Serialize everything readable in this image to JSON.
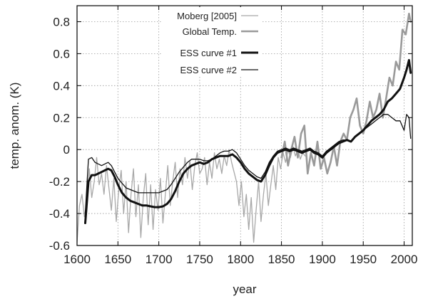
{
  "chart_data": {
    "type": "line",
    "title": "",
    "xlabel": "year",
    "ylabel": "temp. anom. (K)",
    "xlim": [
      1600,
      2010
    ],
    "ylim": [
      -0.6,
      0.9
    ],
    "grid": true,
    "legend_position": "top-center",
    "x_ticks": [
      1600,
      1650,
      1700,
      1750,
      1800,
      1850,
      1900,
      1950,
      2000
    ],
    "x_tick_labels": [
      "1600",
      "1650",
      "1700",
      "1750",
      "1800",
      "1850",
      "1900",
      "1950",
      "2000"
    ],
    "y_ticks": [
      -0.6,
      -0.4,
      -0.2,
      0,
      0.2,
      0.4,
      0.6,
      0.8
    ],
    "y_tick_labels": [
      "-0.6",
      "-0.4",
      "-0.2",
      "0",
      "0.2",
      "0.4",
      "0.6",
      "0.8"
    ],
    "series": [
      {
        "name": "Moberg [2005]",
        "color": "#a8a8a8",
        "width": 1.3,
        "x": [
          1600,
          1603,
          1606,
          1609,
          1612,
          1615,
          1618,
          1621,
          1624,
          1627,
          1630,
          1633,
          1636,
          1639,
          1642,
          1645,
          1648,
          1651,
          1654,
          1657,
          1660,
          1663,
          1666,
          1669,
          1672,
          1675,
          1678,
          1681,
          1684,
          1687,
          1690,
          1693,
          1696,
          1699,
          1702,
          1705,
          1708,
          1711,
          1714,
          1717,
          1720,
          1723,
          1726,
          1729,
          1732,
          1735,
          1738,
          1741,
          1744,
          1747,
          1750,
          1753,
          1756,
          1759,
          1762,
          1765,
          1768,
          1771,
          1774,
          1777,
          1780,
          1783,
          1786,
          1789,
          1792,
          1795,
          1798,
          1801,
          1804,
          1807,
          1810,
          1813,
          1816,
          1819,
          1822,
          1825,
          1828,
          1831,
          1834,
          1837,
          1840,
          1843,
          1846,
          1849,
          1852,
          1855,
          1858,
          1861,
          1864,
          1867,
          1870,
          1873,
          1876,
          1879
        ],
        "y": [
          -0.58,
          -0.35,
          -0.28,
          -0.42,
          -0.32,
          -0.12,
          -0.3,
          -0.2,
          -0.05,
          -0.22,
          -0.15,
          -0.28,
          -0.1,
          -0.24,
          -0.38,
          -0.18,
          -0.45,
          -0.25,
          -0.13,
          -0.4,
          -0.2,
          -0.52,
          -0.28,
          -0.12,
          -0.42,
          -0.22,
          -0.55,
          -0.3,
          -0.15,
          -0.47,
          -0.22,
          -0.5,
          -0.25,
          -0.38,
          -0.18,
          -0.46,
          -0.28,
          -0.1,
          -0.35,
          -0.2,
          -0.08,
          -0.3,
          -0.12,
          -0.22,
          -0.05,
          -0.18,
          -0.07,
          -0.25,
          -0.1,
          -0.02,
          -0.15,
          -0.12,
          -0.05,
          -0.22,
          -0.08,
          -0.18,
          -0.02,
          -0.12,
          -0.06,
          -0.15,
          -0.04,
          -0.1,
          0.0,
          -0.08,
          -0.14,
          -0.2,
          -0.35,
          -0.2,
          -0.42,
          -0.28,
          -0.5,
          -0.3,
          -0.58,
          -0.38,
          -0.2,
          -0.45,
          -0.28,
          -0.15,
          -0.35,
          -0.22,
          -0.1,
          -0.25,
          -0.05,
          -0.12,
          -0.02,
          -0.08,
          0.0,
          -0.05,
          0.02,
          -0.04,
          0.0,
          -0.06,
          -0.02,
          -0.04
        ]
      },
      {
        "name": "Global Temp.",
        "color": "#9a9a9a",
        "width": 2.6,
        "x": [
          1850,
          1854,
          1858,
          1862,
          1866,
          1870,
          1874,
          1878,
          1882,
          1886,
          1890,
          1894,
          1898,
          1902,
          1906,
          1910,
          1914,
          1918,
          1922,
          1926,
          1930,
          1934,
          1938,
          1942,
          1946,
          1950,
          1954,
          1958,
          1962,
          1966,
          1970,
          1974,
          1978,
          1982,
          1986,
          1990,
          1994,
          1998,
          2002,
          2006,
          2008
        ],
        "y": [
          -0.05,
          0.05,
          -0.1,
          0.0,
          0.08,
          -0.05,
          0.1,
          0.15,
          -0.15,
          -0.02,
          -0.1,
          0.05,
          -0.12,
          -0.05,
          -0.15,
          -0.08,
          0.02,
          -0.1,
          0.05,
          0.1,
          0.06,
          0.2,
          0.25,
          0.32,
          0.15,
          0.1,
          0.18,
          0.3,
          0.2,
          0.25,
          0.35,
          0.2,
          0.32,
          0.45,
          0.4,
          0.55,
          0.5,
          0.75,
          0.72,
          0.85,
          0.8
        ]
      },
      {
        "name": "ESS curve #1",
        "color": "#111111",
        "width": 3.0,
        "x": [
          1610,
          1614,
          1618,
          1622,
          1626,
          1630,
          1634,
          1638,
          1642,
          1646,
          1650,
          1655,
          1660,
          1665,
          1670,
          1675,
          1680,
          1685,
          1690,
          1695,
          1700,
          1705,
          1710,
          1715,
          1720,
          1725,
          1730,
          1735,
          1740,
          1745,
          1750,
          1755,
          1760,
          1765,
          1770,
          1775,
          1780,
          1785,
          1790,
          1795,
          1800,
          1805,
          1810,
          1815,
          1820,
          1825,
          1830,
          1835,
          1840,
          1845,
          1850,
          1855,
          1860,
          1865,
          1870,
          1875,
          1880,
          1885,
          1890,
          1895,
          1900,
          1905,
          1910,
          1915,
          1920,
          1925,
          1930,
          1935,
          1940,
          1945,
          1950,
          1955,
          1960,
          1965,
          1970,
          1975,
          1980,
          1985,
          1990,
          1995,
          2000,
          2003,
          2006,
          2008
        ],
        "y": [
          -0.46,
          -0.2,
          -0.16,
          -0.16,
          -0.15,
          -0.14,
          -0.13,
          -0.12,
          -0.13,
          -0.17,
          -0.22,
          -0.27,
          -0.3,
          -0.32,
          -0.33,
          -0.34,
          -0.35,
          -0.35,
          -0.355,
          -0.36,
          -0.36,
          -0.355,
          -0.34,
          -0.31,
          -0.26,
          -0.2,
          -0.15,
          -0.12,
          -0.1,
          -0.09,
          -0.08,
          -0.09,
          -0.08,
          -0.06,
          -0.05,
          -0.04,
          -0.04,
          -0.04,
          -0.03,
          -0.05,
          -0.08,
          -0.12,
          -0.15,
          -0.17,
          -0.19,
          -0.2,
          -0.16,
          -0.1,
          -0.05,
          -0.02,
          -0.01,
          0.0,
          -0.01,
          0.0,
          -0.01,
          -0.02,
          -0.01,
          0.0,
          -0.02,
          -0.03,
          -0.05,
          -0.02,
          0.0,
          0.02,
          0.04,
          0.05,
          0.06,
          0.05,
          0.08,
          0.1,
          0.12,
          0.15,
          0.18,
          0.2,
          0.22,
          0.25,
          0.3,
          0.32,
          0.35,
          0.38,
          0.45,
          0.5,
          0.56,
          0.48
        ]
      },
      {
        "name": "ESS curve #2",
        "color": "#111111",
        "width": 1.3,
        "x": [
          1610,
          1614,
          1618,
          1622,
          1626,
          1630,
          1634,
          1638,
          1642,
          1646,
          1650,
          1655,
          1660,
          1665,
          1670,
          1675,
          1680,
          1685,
          1690,
          1695,
          1700,
          1705,
          1710,
          1715,
          1720,
          1725,
          1730,
          1735,
          1740,
          1745,
          1750,
          1755,
          1760,
          1765,
          1770,
          1775,
          1780,
          1785,
          1790,
          1795,
          1800,
          1805,
          1810,
          1815,
          1820,
          1825,
          1830,
          1835,
          1840,
          1845,
          1850,
          1855,
          1860,
          1865,
          1870,
          1875,
          1880,
          1885,
          1890,
          1895,
          1900,
          1905,
          1910,
          1915,
          1920,
          1925,
          1930,
          1935,
          1940,
          1945,
          1950,
          1955,
          1960,
          1965,
          1970,
          1975,
          1980,
          1985,
          1990,
          1995,
          2000,
          2003,
          2006,
          2008
        ],
        "y": [
          -0.4,
          -0.06,
          -0.05,
          -0.08,
          -0.09,
          -0.1,
          -0.09,
          -0.08,
          -0.1,
          -0.14,
          -0.18,
          -0.21,
          -0.24,
          -0.25,
          -0.26,
          -0.27,
          -0.27,
          -0.27,
          -0.27,
          -0.27,
          -0.27,
          -0.26,
          -0.25,
          -0.22,
          -0.18,
          -0.14,
          -0.11,
          -0.08,
          -0.06,
          -0.06,
          -0.06,
          -0.07,
          -0.07,
          -0.06,
          -0.04,
          -0.02,
          -0.01,
          -0.01,
          0.0,
          -0.02,
          -0.06,
          -0.1,
          -0.13,
          -0.15,
          -0.17,
          -0.18,
          -0.14,
          -0.08,
          -0.04,
          -0.01,
          0.0,
          0.01,
          0.0,
          0.01,
          0.0,
          -0.01,
          0.0,
          0.01,
          -0.01,
          -0.02,
          -0.04,
          -0.01,
          0.01,
          0.03,
          0.05,
          0.06,
          0.06,
          0.05,
          0.08,
          0.1,
          0.12,
          0.14,
          0.16,
          0.18,
          0.2,
          0.22,
          0.22,
          0.2,
          0.18,
          0.18,
          0.12,
          0.22,
          0.2,
          0.07
        ]
      }
    ]
  }
}
